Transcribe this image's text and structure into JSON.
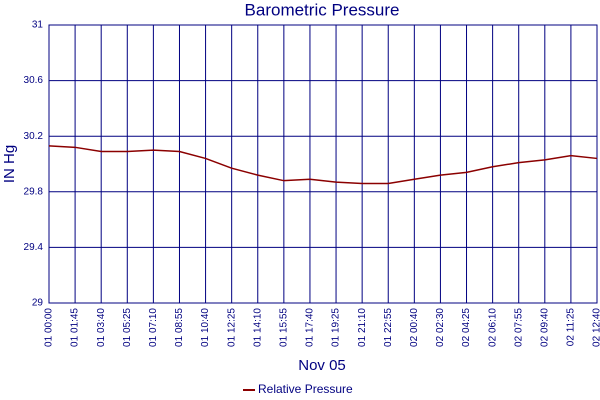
{
  "chart_data": {
    "type": "line",
    "title": "Barometric Pressure",
    "x_label": "Nov 05",
    "y_label": "IN Hg",
    "categories": [
      "01 00:00",
      "01 01:45",
      "01 03:40",
      "01 05:25",
      "01 07:10",
      "01 08:55",
      "01 10:40",
      "01 12:25",
      "01 14:10",
      "01 15:55",
      "01 17:40",
      "01 19:25",
      "01 21:10",
      "01 22:55",
      "02 00:40",
      "02 02:30",
      "02 04:25",
      "02 06:10",
      "02 07:55",
      "02 09:40",
      "02 11:25",
      "02 12:40"
    ],
    "series": [
      {
        "name": "Relative Pressure",
        "color": "#8b0000",
        "values": [
          30.13,
          30.12,
          30.09,
          30.09,
          30.1,
          30.09,
          30.04,
          29.97,
          29.92,
          29.88,
          29.89,
          29.87,
          29.86,
          29.86,
          29.89,
          29.92,
          29.94,
          29.98,
          30.01,
          30.03,
          30.06,
          30.04
        ]
      }
    ],
    "ylim": [
      29,
      31
    ],
    "yticks": [
      29,
      29.4,
      29.8,
      30.2,
      30.6,
      31
    ],
    "grid": true,
    "legend": "bottom"
  }
}
